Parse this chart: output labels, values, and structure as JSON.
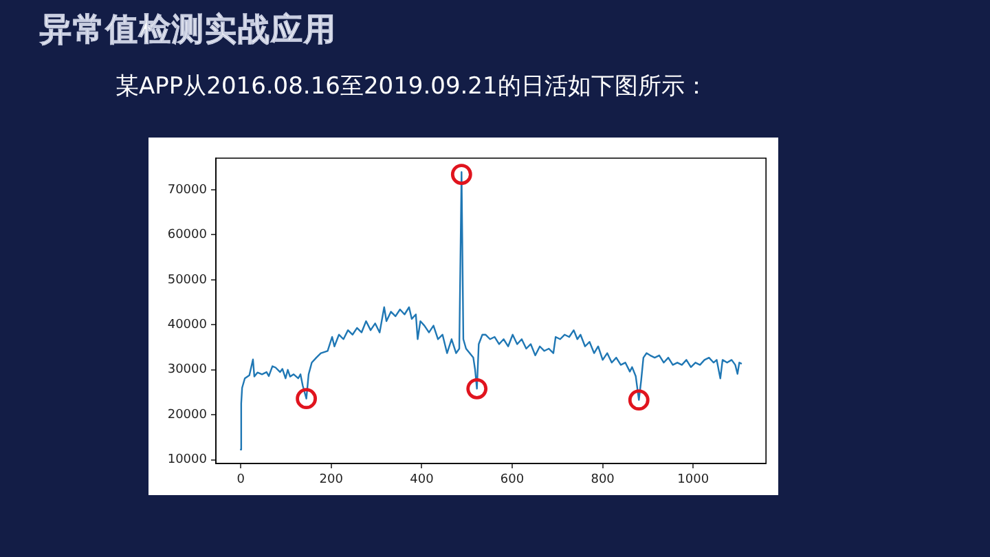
{
  "chart_data": {
    "type": "line",
    "title": "异常值检测实战应用",
    "subtitle": "某APP从2016.08.16至2019.09.21的日活如下图所示：",
    "xlim": [
      -55,
      1161
    ],
    "xticks": [
      0,
      200,
      400,
      600,
      800,
      1000
    ],
    "ylim": [
      9200,
      77000
    ],
    "yticks": [
      10000,
      20000,
      30000,
      40000,
      50000,
      60000,
      70000
    ],
    "grid": false,
    "series": [
      {
        "color": "#1f77b4",
        "x": [
          0,
          1,
          3,
          9,
          19,
          27,
          30,
          37,
          47,
          57,
          62,
          70,
          77,
          87,
          92,
          99,
          104,
          109,
          117,
          127,
          132,
          137,
          145,
          150,
          157,
          167,
          177,
          192,
          202,
          207,
          217,
          227,
          237,
          247,
          257,
          267,
          277,
          287,
          297,
          307,
          317,
          322,
          332,
          342,
          352,
          362,
          372,
          378,
          387,
          391,
          397,
          406,
          416,
          426,
          436,
          446,
          456,
          466,
          476,
          483,
          488,
          492,
          498,
          506,
          514,
          518,
          522,
          526,
          534,
          541,
          551,
          561,
          571,
          581,
          591,
          601,
          611,
          621,
          631,
          641,
          651,
          661,
          671,
          681,
          691,
          696,
          706,
          716,
          726,
          736,
          744,
          751,
          761,
          771,
          781,
          790,
          800,
          810,
          820,
          830,
          840,
          850,
          860,
          865,
          873,
          880,
          885,
          890,
          897,
          905,
          915,
          925,
          935,
          945,
          955,
          965,
          975,
          985,
          995,
          1005,
          1015,
          1025,
          1035,
          1045,
          1052,
          1060,
          1065,
          1075,
          1085,
          1093,
          1098,
          1102,
          1106
        ],
        "values": [
          12300,
          22500,
          26000,
          28100,
          28800,
          32300,
          28500,
          29400,
          29000,
          29500,
          28600,
          30800,
          30500,
          29500,
          30200,
          28100,
          30000,
          28500,
          29000,
          28100,
          29000,
          26500,
          23600,
          29000,
          31600,
          32700,
          33700,
          34200,
          37300,
          35200,
          37800,
          36800,
          38800,
          37800,
          39300,
          38300,
          40800,
          38800,
          40300,
          38300,
          43900,
          40800,
          42900,
          41900,
          43400,
          42300,
          43900,
          41300,
          42300,
          36800,
          40800,
          39800,
          38300,
          39800,
          36800,
          37800,
          33700,
          36800,
          33700,
          34700,
          73900,
          36800,
          34700,
          33700,
          32700,
          30000,
          25800,
          35700,
          37800,
          37800,
          36800,
          37300,
          35700,
          36800,
          35200,
          37800,
          35700,
          36800,
          34700,
          35700,
          33200,
          35200,
          34200,
          34700,
          33700,
          37300,
          36800,
          37800,
          37300,
          38800,
          36800,
          37800,
          35200,
          36200,
          33700,
          35200,
          32200,
          33700,
          31600,
          32700,
          31100,
          31600,
          29600,
          30600,
          28600,
          23300,
          27600,
          32700,
          33700,
          33200,
          32700,
          33200,
          31600,
          32700,
          31100,
          31600,
          31100,
          32200,
          30600,
          31600,
          31100,
          32200,
          32700,
          31600,
          32200,
          28100,
          32200,
          31600,
          32200,
          31100,
          29100,
          31600,
          31400
        ]
      },
      {
        "type": "scatter",
        "color": "#e0141e",
        "marker": "circle",
        "x": [
          145,
          488,
          522,
          880
        ],
        "values": [
          23600,
          73400,
          25800,
          23300
        ]
      }
    ]
  }
}
